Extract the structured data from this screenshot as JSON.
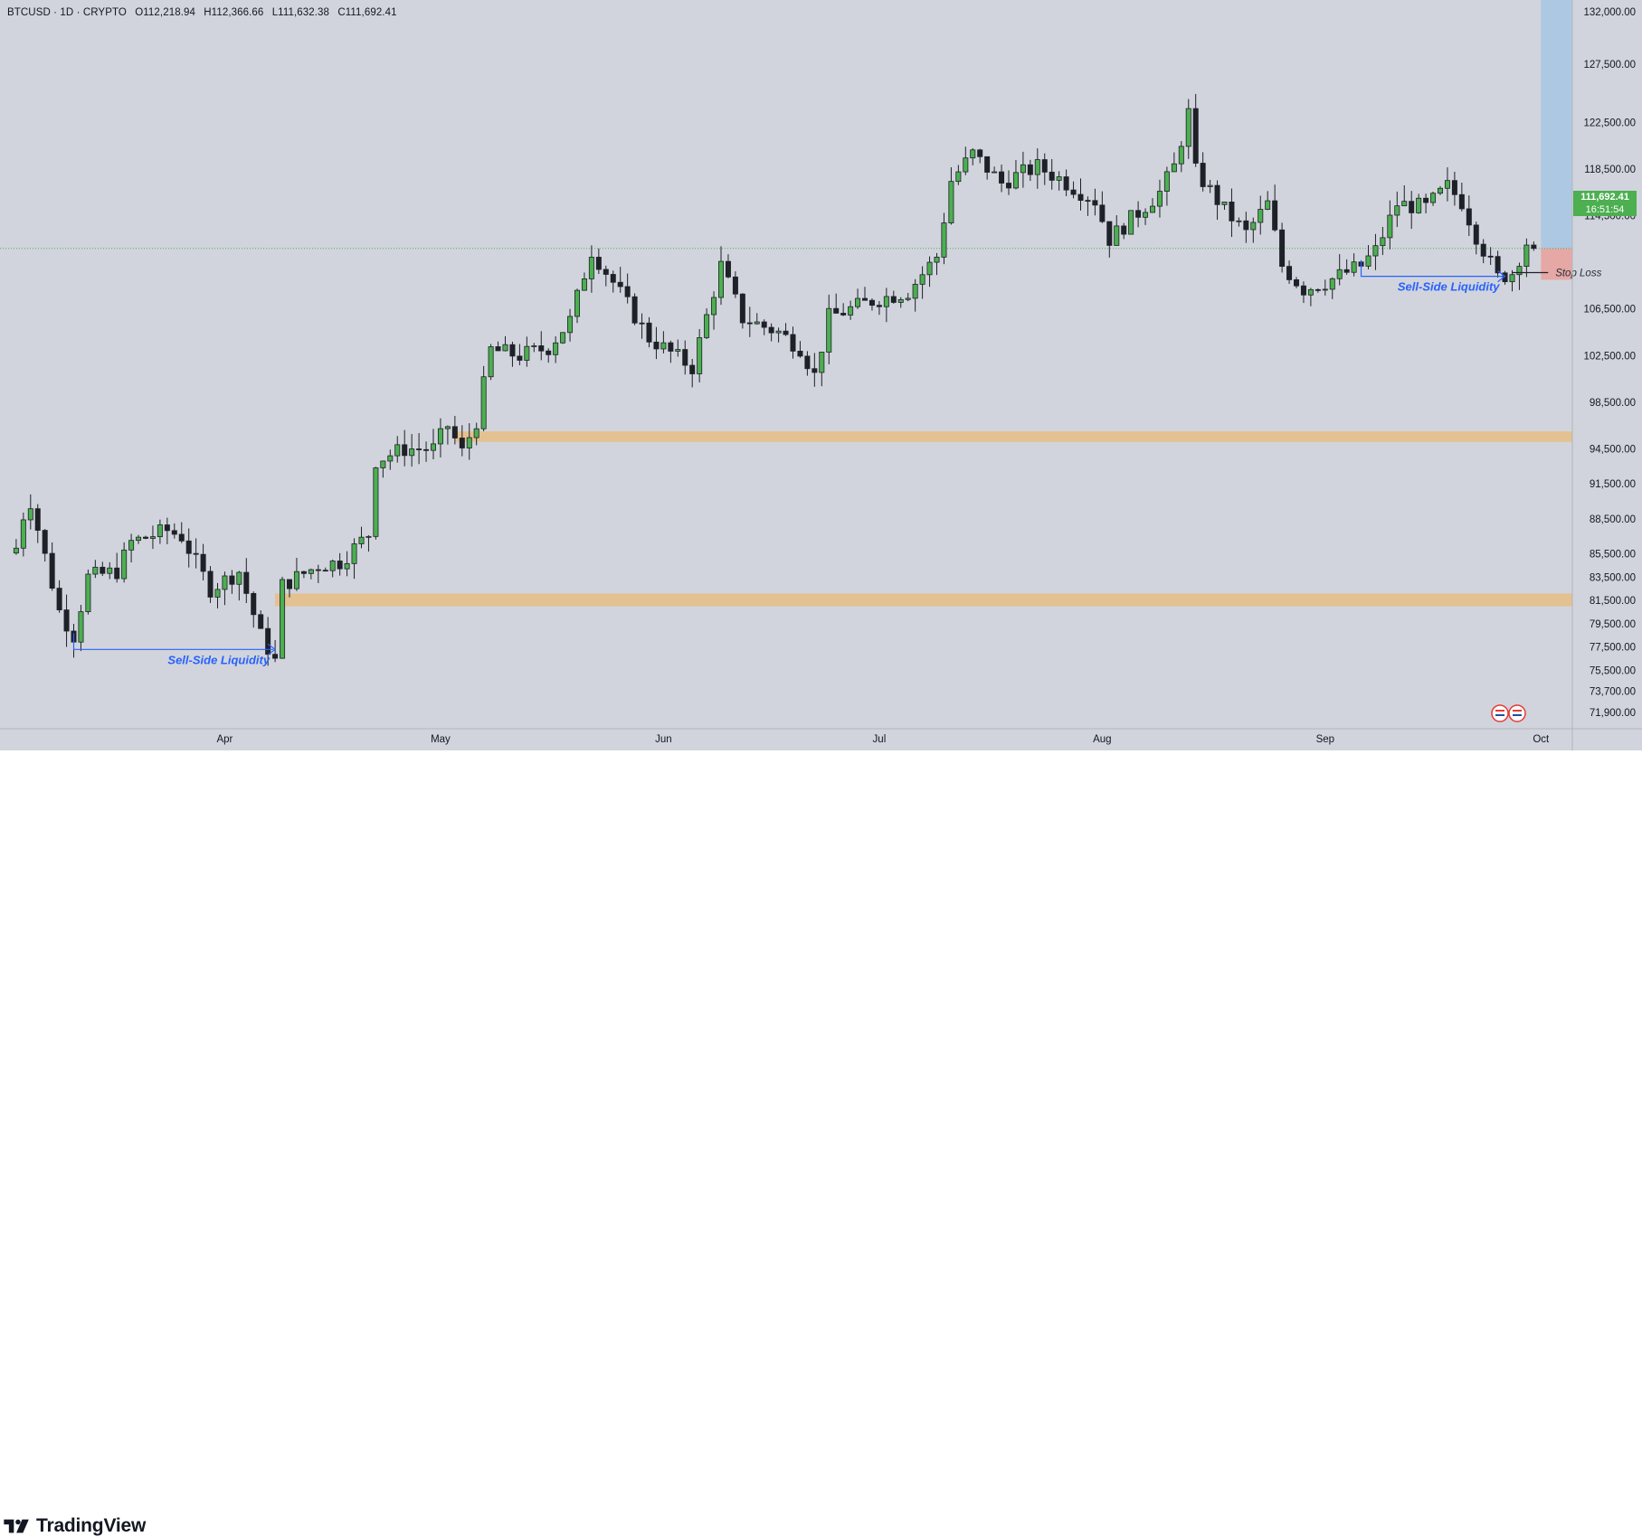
{
  "legend": {
    "symbol": "BTCUSD · 1D · CRYPTO",
    "open": "O112,218.94",
    "high": "H112,366.66",
    "low": "L111,632.38",
    "close": "C111,692.41"
  },
  "price_tag": {
    "price": "111,692.41",
    "countdown": "16:51:54"
  },
  "brand": "TradingView",
  "annotations": {
    "ssl_left": "Sell-Side Liquidity",
    "ssl_right": "Sell-Side Liquidity",
    "stop_loss": "Stop Loss"
  },
  "colors": {
    "background": "#d1d4dc",
    "up": "#4caf50",
    "down": "#1f2128",
    "zone": "#e8bd84",
    "target": "#a9c6e2",
    "annotation": "#2962ff",
    "last_price": "#4caf50",
    "stop": "#f23645"
  },
  "chart_data": {
    "type": "candlestick",
    "symbol": "BTCUSD",
    "interval": "1D",
    "ylim": [
      70500,
      133000
    ],
    "y_ticks": [
      {
        "v": 132000,
        "label": "132,000.00"
      },
      {
        "v": 127500,
        "label": "127,500.00"
      },
      {
        "v": 122500,
        "label": "122,500.00"
      },
      {
        "v": 118500,
        "label": "118,500.00"
      },
      {
        "v": 114500,
        "label": "114,500.00"
      },
      {
        "v": 106500,
        "label": "106,500.00"
      },
      {
        "v": 102500,
        "label": "102,500.00"
      },
      {
        "v": 98500,
        "label": "98,500.00"
      },
      {
        "v": 94500,
        "label": "94,500.00"
      },
      {
        "v": 91500,
        "label": "91,500.00"
      },
      {
        "v": 88500,
        "label": "88,500.00"
      },
      {
        "v": 85500,
        "label": "85,500.00"
      },
      {
        "v": 83500,
        "label": "83,500.00"
      },
      {
        "v": 81500,
        "label": "81,500.00"
      },
      {
        "v": 79500,
        "label": "79,500.00"
      },
      {
        "v": 77500,
        "label": "77,500.00"
      },
      {
        "v": 75500,
        "label": "75,500.00"
      },
      {
        "v": 73700,
        "label": "73,700.00"
      },
      {
        "v": 71900,
        "label": "71,900.00"
      }
    ],
    "x_ticks": [
      {
        "date": "2025-04-01",
        "label": "Apr"
      },
      {
        "date": "2025-05-01",
        "label": "May"
      },
      {
        "date": "2025-06-01",
        "label": "Jun"
      },
      {
        "date": "2025-07-01",
        "label": "Jul"
      },
      {
        "date": "2025-08-01",
        "label": "Aug"
      },
      {
        "date": "2025-09-01",
        "label": "Sep"
      },
      {
        "date": "2025-10-01",
        "label": "Oct"
      }
    ],
    "anchors": [
      [
        "2025-03-03",
        86000
      ],
      [
        "2025-03-04",
        88800
      ],
      [
        "2025-03-05",
        90000
      ],
      [
        "2025-03-09",
        80600
      ],
      [
        "2025-03-11",
        78500
      ],
      [
        "2025-03-13",
        83500
      ],
      [
        "2025-03-17",
        84000
      ],
      [
        "2025-03-19",
        86500
      ],
      [
        "2025-03-24",
        87500
      ],
      [
        "2025-03-26",
        87000
      ],
      [
        "2025-03-30",
        82500
      ],
      [
        "2025-04-03",
        84000
      ],
      [
        "2025-04-06",
        78500
      ],
      [
        "2025-04-08",
        76300
      ],
      [
        "2025-04-09",
        82800
      ],
      [
        "2025-04-14",
        84500
      ],
      [
        "2025-04-17",
        84800
      ],
      [
        "2025-04-21",
        87200
      ],
      [
        "2025-04-22",
        93500
      ],
      [
        "2025-04-26",
        94500
      ],
      [
        "2025-04-30",
        94500
      ],
      [
        "2025-05-02",
        96500
      ],
      [
        "2025-05-04",
        94200
      ],
      [
        "2025-05-06",
        96900
      ],
      [
        "2025-05-08",
        103000
      ],
      [
        "2025-05-12",
        102500
      ],
      [
        "2025-05-16",
        103200
      ],
      [
        "2025-05-19",
        105500
      ],
      [
        "2025-05-22",
        111500
      ],
      [
        "2025-05-25",
        108800
      ],
      [
        "2025-05-30",
        104000
      ],
      [
        "2025-06-05",
        101500
      ],
      [
        "2025-06-09",
        110200
      ],
      [
        "2025-06-12",
        105700
      ],
      [
        "2025-06-17",
        104500
      ],
      [
        "2025-06-20",
        103200
      ],
      [
        "2025-06-22",
        100800
      ],
      [
        "2025-06-24",
        105800
      ],
      [
        "2025-06-30",
        107200
      ],
      [
        "2025-07-05",
        108000
      ],
      [
        "2025-07-09",
        111000
      ],
      [
        "2025-07-11",
        117500
      ],
      [
        "2025-07-14",
        119800
      ],
      [
        "2025-07-18",
        117300
      ],
      [
        "2025-07-20",
        117900
      ],
      [
        "2025-07-23",
        118700
      ],
      [
        "2025-07-26",
        117700
      ],
      [
        "2025-07-31",
        115800
      ],
      [
        "2025-08-02",
        112500
      ],
      [
        "2025-08-05",
        114200
      ],
      [
        "2025-08-09",
        116500
      ],
      [
        "2025-08-11",
        118700
      ],
      [
        "2025-08-13",
        123300
      ],
      [
        "2025-08-14",
        118300
      ],
      [
        "2025-08-18",
        115000
      ],
      [
        "2025-08-21",
        113000
      ],
      [
        "2025-08-24",
        115500
      ],
      [
        "2025-08-26",
        110200
      ],
      [
        "2025-08-29",
        108200
      ],
      [
        "2025-09-01",
        108800
      ],
      [
        "2025-09-06",
        110200
      ],
      [
        "2025-09-08",
        111500
      ],
      [
        "2025-09-11",
        115500
      ],
      [
        "2025-09-15",
        115200
      ],
      [
        "2025-09-18",
        117000
      ],
      [
        "2025-09-20",
        115700
      ],
      [
        "2025-09-22",
        112800
      ],
      [
        "2025-09-25",
        109200
      ],
      [
        "2025-09-27",
        109600
      ],
      [
        "2025-09-29",
        112200
      ],
      [
        "2025-09-30",
        111692
      ]
    ],
    "zones": [
      {
        "from": "2025-04-08",
        "top": 82100,
        "bottom": 81000
      },
      {
        "from": "2025-05-03",
        "top": 96000,
        "bottom": 95100
      }
    ],
    "sell_side_liquidity": [
      {
        "start": "2025-03-11",
        "end": "2025-04-08",
        "level": 77300
      },
      {
        "start": "2025-09-06",
        "end": "2025-09-26",
        "level": 109300
      }
    ],
    "position": {
      "entry": 111692.41,
      "target_top": 133000,
      "stop_loss": 109000,
      "start": "2025-10-01"
    },
    "last_close": 111692.41
  }
}
